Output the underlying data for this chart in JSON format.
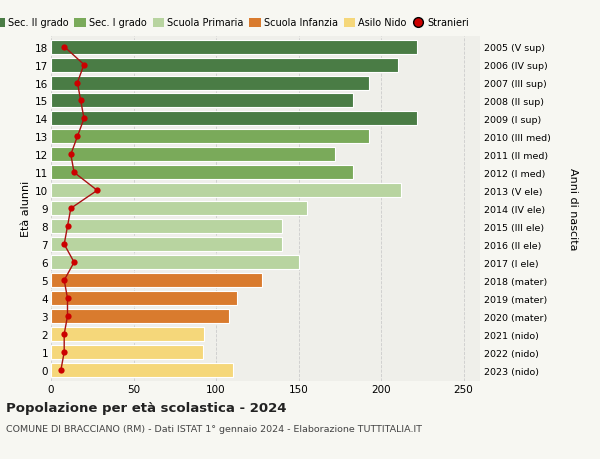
{
  "ages": [
    18,
    17,
    16,
    15,
    14,
    13,
    12,
    11,
    10,
    9,
    8,
    7,
    6,
    5,
    4,
    3,
    2,
    1,
    0
  ],
  "right_labels": [
    "2005 (V sup)",
    "2006 (IV sup)",
    "2007 (III sup)",
    "2008 (II sup)",
    "2009 (I sup)",
    "2010 (III med)",
    "2011 (II med)",
    "2012 (I med)",
    "2013 (V ele)",
    "2014 (IV ele)",
    "2015 (III ele)",
    "2016 (II ele)",
    "2017 (I ele)",
    "2018 (mater)",
    "2019 (mater)",
    "2020 (mater)",
    "2021 (nido)",
    "2022 (nido)",
    "2023 (nido)"
  ],
  "bar_values": [
    222,
    210,
    193,
    183,
    222,
    193,
    172,
    183,
    212,
    155,
    140,
    140,
    150,
    128,
    113,
    108,
    93,
    92,
    110
  ],
  "bar_colors": [
    "#4a7c45",
    "#4a7c45",
    "#4a7c45",
    "#4a7c45",
    "#4a7c45",
    "#7aaa5a",
    "#7aaa5a",
    "#7aaa5a",
    "#b8d4a0",
    "#b8d4a0",
    "#b8d4a0",
    "#b8d4a0",
    "#b8d4a0",
    "#d97b2e",
    "#d97b2e",
    "#d97b2e",
    "#f5d77a",
    "#f5d77a",
    "#f5d77a"
  ],
  "stranieri_values": [
    8,
    20,
    16,
    18,
    20,
    16,
    12,
    14,
    28,
    12,
    10,
    8,
    14,
    8,
    10,
    10,
    8,
    8,
    6
  ],
  "legend_labels": [
    "Sec. II grado",
    "Sec. I grado",
    "Scuola Primaria",
    "Scuola Infanzia",
    "Asilo Nido",
    "Stranieri"
  ],
  "legend_colors": [
    "#4a7c45",
    "#7aaa5a",
    "#b8d4a0",
    "#d97b2e",
    "#f5d77a",
    "#cc0000"
  ],
  "title": "Popolazione per età scolastica - 2024",
  "subtitle": "COMUNE DI BRACCIANO (RM) - Dati ISTAT 1° gennaio 2024 - Elaborazione TUTTITALIA.IT",
  "ylabel": "Età alunni",
  "right_ylabel": "Anni di nascita",
  "xlim": [
    0,
    260
  ],
  "background_color": "#f7f7f2",
  "bar_background": "#efefea",
  "grid_color": "#cccccc",
  "stranieri_line_color": "#aa1111",
  "stranieri_dot_color": "#cc0000"
}
